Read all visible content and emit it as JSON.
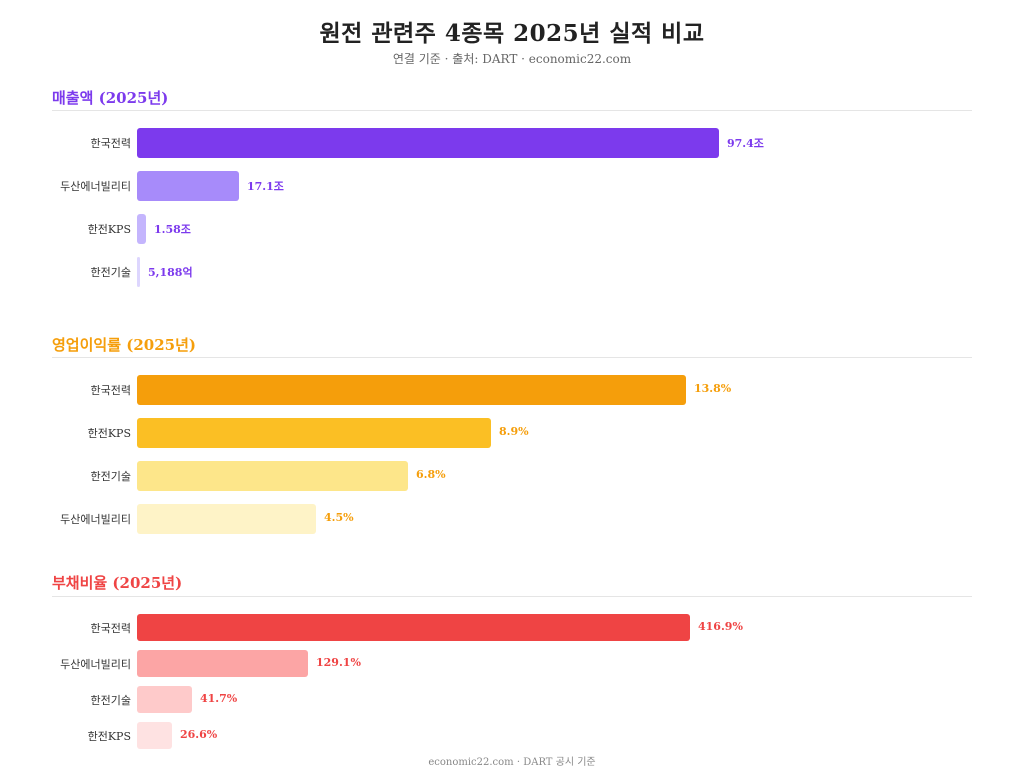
{
  "header": {
    "title": "원전 관련주 4종목 2025년 실적 비교",
    "subtitle": "연결 기준 · 출처: DART · economic22.com"
  },
  "footer": {
    "text": "economic22.com · DART 공시 기준"
  },
  "chart_data": [
    {
      "type": "bar",
      "orientation": "horizontal",
      "title": "매출액 (2025년)",
      "title_color": "#7c3aed",
      "unit": "억원",
      "xlim": [
        0,
        973000
      ],
      "categories": [
        "한국전력",
        "두산에너빌리티",
        "한전KPS",
        "한전기술"
      ],
      "values": [
        974000,
        171000,
        15800,
        5188
      ],
      "value_labels": [
        "97.4조",
        "17.1조",
        "1.58조",
        "5,188억"
      ],
      "bar_colors": [
        "#7c3aed",
        "#a78bfa",
        "#c4b5fd",
        "#ddd6fe"
      ],
      "label_color": "#7c3aed"
    },
    {
      "type": "bar",
      "orientation": "horizontal",
      "title": "영업이익률 (2025년)",
      "title_color": "#f59e0b",
      "unit": "%",
      "xlim": [
        0,
        13.8
      ],
      "categories": [
        "한국전력",
        "한전KPS",
        "한전기술",
        "두산에너빌리티"
      ],
      "values": [
        13.8,
        8.9,
        6.8,
        4.5
      ],
      "value_labels": [
        "13.8%",
        "8.9%",
        "6.8%",
        "4.5%"
      ],
      "bar_colors": [
        "#f59e0b",
        "#fbbf24",
        "#fde68a",
        "#fef3c7"
      ],
      "label_color": "#f59e0b"
    },
    {
      "type": "bar",
      "orientation": "horizontal",
      "title": "부채비율 (2025년)",
      "title_color": "#ef4444",
      "unit": "%",
      "xlim": [
        0,
        416.9
      ],
      "categories": [
        "한국전력",
        "두산에너빌리티",
        "한전기술",
        "한전KPS"
      ],
      "values": [
        416.9,
        129.1,
        41.7,
        26.6
      ],
      "value_labels": [
        "416.9%",
        "129.1%",
        "41.7%",
        "26.6%"
      ],
      "bar_colors": [
        "#ef4444",
        "#fca5a5",
        "#fecaca",
        "#fee2e2"
      ],
      "label_color": "#ef4444"
    }
  ]
}
